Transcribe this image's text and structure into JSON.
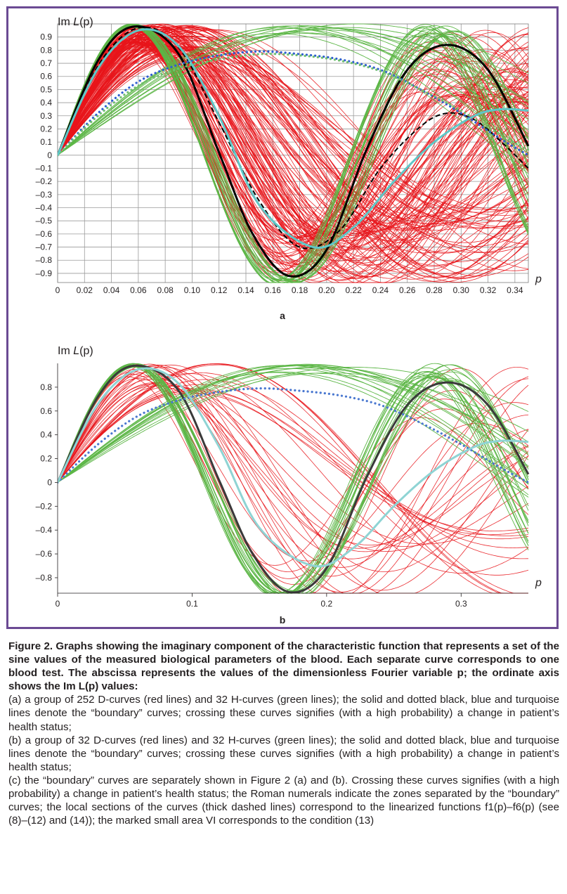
{
  "figure": {
    "panels": [
      {
        "id": "a",
        "label": "a",
        "ylabel_prefix": "Im ",
        "ylabel_var": "L",
        "ylabel_arg": "(p)",
        "xlabel": "p"
      },
      {
        "id": "b",
        "label": "b",
        "ylabel_prefix": "Im ",
        "ylabel_var": "L",
        "ylabel_arg": "(p)",
        "xlabel": "p"
      }
    ]
  },
  "chart_data": [
    {
      "type": "line",
      "panel": "a",
      "grid": true,
      "xlim": [
        0,
        0.35
      ],
      "ylim": [
        -0.97,
        1.0
      ],
      "x_ticks": [
        0,
        0.02,
        0.04,
        0.06,
        0.08,
        0.1,
        0.12,
        0.14,
        0.16,
        0.18,
        0.2,
        0.22,
        0.24,
        0.26,
        0.28,
        0.3,
        0.32,
        0.34
      ],
      "x_tick_labels": [
        "0",
        "0.02",
        "0.04",
        "0.06",
        "0.08",
        "0.10",
        "0.12",
        "0.14",
        "0.16",
        "0.18",
        "0.20",
        "0.22",
        "0.24",
        "0.26",
        "0.28",
        "0.30",
        "0.32",
        "0.34"
      ],
      "y_ticks": [
        0.9,
        0.8,
        0.7,
        0.6,
        0.5,
        0.4,
        0.3,
        0.2,
        0.1,
        0,
        -0.1,
        -0.2,
        -0.3,
        -0.4,
        -0.5,
        -0.6,
        -0.7,
        -0.8,
        -0.9
      ],
      "y_tick_labels": [
        "0.9",
        "0.8",
        "0.7",
        "0.6",
        "0.5",
        "0.4",
        "0.3",
        "0.2",
        "0.1",
        "0",
        "–0.1",
        "–0.2",
        "–0.3",
        "–0.4",
        "–0.5",
        "–0.6",
        "–0.7",
        "–0.8",
        "–0.9"
      ],
      "series": [
        {
          "color": "#000000",
          "style": "solid",
          "x": [
            0,
            0.03,
            0.057,
            0.09,
            0.12,
            0.145,
            0.172,
            0.2,
            0.23,
            0.26,
            0.29,
            0.32,
            0.35
          ],
          "y": [
            0,
            0.72,
            0.98,
            0.77,
            0.02,
            -0.6,
            -0.92,
            -0.72,
            0.05,
            0.65,
            0.84,
            0.65,
            0.07
          ]
        },
        {
          "color": "#000000",
          "style": "dashed",
          "x": [
            0,
            0.03,
            0.06,
            0.09,
            0.12,
            0.15,
            0.18,
            0.21,
            0.24,
            0.27,
            0.29,
            0.31,
            0.33,
            0.35
          ],
          "y": [
            0,
            0.68,
            0.97,
            0.82,
            0.25,
            -0.35,
            -0.7,
            -0.57,
            -0.1,
            0.22,
            0.32,
            0.27,
            0.1,
            -0.1
          ]
        },
        {
          "color": "#2e5fd1",
          "style": "dotted",
          "x": [
            0,
            0.03,
            0.06,
            0.09,
            0.12,
            0.15,
            0.18,
            0.21,
            0.24,
            0.27,
            0.3,
            0.33,
            0.35
          ],
          "y": [
            0,
            0.32,
            0.56,
            0.69,
            0.76,
            0.79,
            0.77,
            0.73,
            0.65,
            0.5,
            0.32,
            0.12,
            0
          ]
        },
        {
          "color": "#6fbf6f",
          "style": "dotted",
          "x": [
            0,
            0.03,
            0.06,
            0.09,
            0.12,
            0.15,
            0.18,
            0.21,
            0.24,
            0.27,
            0.3,
            0.33,
            0.35
          ],
          "y": [
            0,
            0.3,
            0.53,
            0.66,
            0.73,
            0.77,
            0.76,
            0.72,
            0.64,
            0.5,
            0.34,
            0.15,
            0.04
          ]
        },
        {
          "color": "#5ec8c8",
          "style": "solid",
          "x": [
            0,
            0.03,
            0.06,
            0.09,
            0.12,
            0.15,
            0.19,
            0.22,
            0.25,
            0.28,
            0.31,
            0.33,
            0.35
          ],
          "y": [
            0,
            0.66,
            0.95,
            0.83,
            0.3,
            -0.38,
            -0.7,
            -0.55,
            -0.2,
            0.1,
            0.3,
            0.35,
            0.34
          ]
        }
      ]
    },
    {
      "type": "line",
      "panel": "b",
      "grid": false,
      "xlim": [
        0,
        0.35
      ],
      "ylim": [
        -0.93,
        1.0
      ],
      "x_ticks": [
        0,
        0.1,
        0.2,
        0.3
      ],
      "x_tick_labels": [
        "0",
        "0.1",
        "0.2",
        "0.3"
      ],
      "y_ticks": [
        0.8,
        0.6,
        0.4,
        0.2,
        0,
        -0.2,
        -0.4,
        -0.6,
        -0.8
      ],
      "y_tick_labels": [
        "0.8",
        "0.6",
        "0.4",
        "0.2",
        "0",
        "–0.2",
        "–0.4",
        "–0.6",
        "–0.8"
      ],
      "series": [
        {
          "color": "#3a3a3a",
          "style": "solid",
          "x": [
            0,
            0.03,
            0.057,
            0.09,
            0.12,
            0.145,
            0.172,
            0.2,
            0.23,
            0.26,
            0.29,
            0.32,
            0.35
          ],
          "y": [
            0,
            0.72,
            0.98,
            0.77,
            0.02,
            -0.6,
            -0.92,
            -0.72,
            0.05,
            0.65,
            0.84,
            0.65,
            0.07
          ]
        },
        {
          "color": "#4a78d0",
          "style": "dotted",
          "x": [
            0,
            0.03,
            0.06,
            0.09,
            0.12,
            0.15,
            0.18,
            0.21,
            0.24,
            0.27,
            0.3,
            0.33,
            0.35
          ],
          "y": [
            0,
            0.32,
            0.56,
            0.69,
            0.76,
            0.79,
            0.77,
            0.73,
            0.65,
            0.5,
            0.32,
            0.12,
            0
          ]
        },
        {
          "color": "#8fd4d4",
          "style": "solid",
          "x": [
            0,
            0.03,
            0.06,
            0.09,
            0.12,
            0.15,
            0.19,
            0.22,
            0.25,
            0.28,
            0.31,
            0.33,
            0.35
          ],
          "y": [
            0,
            0.66,
            0.95,
            0.83,
            0.3,
            -0.38,
            -0.7,
            -0.55,
            -0.2,
            0.1,
            0.3,
            0.35,
            0.34
          ]
        }
      ]
    }
  ],
  "caption": {
    "heading": "Figure 2. Graphs showing the imaginary component of the characteristic function that represents a set of the sine values of the measured biological parameters of the blood. Each separate curve corresponds to one blood test. The abscissa represents the values of the dimensionless Fourier variable p; the ordinate axis shows the Im L(p) values:",
    "item_a": "(a) a group of 252 D-curves (red lines) and 32 H-curves (green lines); the solid and dotted black, blue and turquoise lines denote the “boundary” curves; crossing these curves signifies (with a high probability) a change in patient’s health status;",
    "item_b": "(b) a group of 32 D-curves (red lines) and 32 H-curves (green lines); the solid and dotted black, blue and turquoise lines denote the “boundary” curves; crossing these curves signifies (with a high probability) a change in patient’s health status;",
    "item_c": "(c) the “boundary” curves are separately shown in Figure 2 (a) and (b). Crossing these curves signifies (with a high probability) a change in patient’s health status; the Roman numerals indicate the zones separated by the “boundary” curves; the local sections of the curves (thick dashed lines) correspond to the linearized functions f1(p)–f6(p) (see (8)–(12) and (14)); the marked small area VI corresponds to the condition (13)"
  },
  "colors": {
    "frame": "#6b4a93",
    "d_curves": "#e8151b",
    "h_curves": "#5cb646"
  }
}
